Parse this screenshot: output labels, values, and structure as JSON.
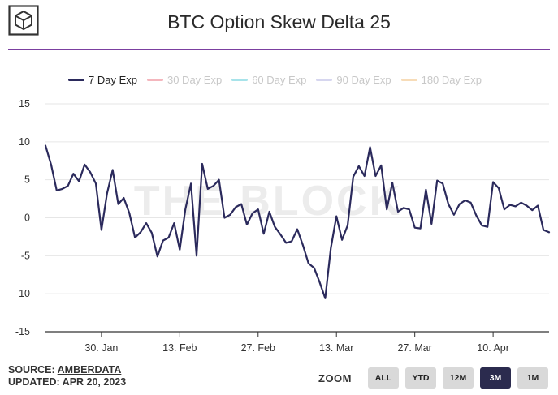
{
  "title": "BTC Option Skew Delta 25",
  "legend": [
    {
      "label": "7 Day Exp",
      "color": "#2b2a5c",
      "active": true
    },
    {
      "label": "30 Day Exp",
      "color": "#f4b6bd",
      "active": false
    },
    {
      "label": "60 Day Exp",
      "color": "#a7e3ea",
      "active": false
    },
    {
      "label": "90 Day Exp",
      "color": "#d6d6ef",
      "active": false
    },
    {
      "label": "180 Day Exp",
      "color": "#f7dcb8",
      "active": false
    }
  ],
  "watermark": "THE BLOCK",
  "source": {
    "prefix": "SOURCE: ",
    "name": "AMBERDATA",
    "updated": "UPDATED: APR 20, 2023"
  },
  "zoom": {
    "label": "ZOOM",
    "buttons": [
      "ALL",
      "YTD",
      "12M",
      "3M",
      "1M"
    ],
    "active": "3M"
  },
  "chart_data": {
    "type": "line",
    "title": "BTC Option Skew Delta 25",
    "ylim": [
      -15,
      15
    ],
    "yticks": [
      15,
      10,
      5,
      0,
      -5,
      -10,
      -15
    ],
    "xlim": [
      "2023-01-20",
      "2023-04-20"
    ],
    "xticks": [
      {
        "date": "2023-01-30",
        "label": "30. Jan"
      },
      {
        "date": "2023-02-13",
        "label": "13. Feb"
      },
      {
        "date": "2023-02-27",
        "label": "27. Feb"
      },
      {
        "date": "2023-03-13",
        "label": "13. Mar"
      },
      {
        "date": "2023-03-27",
        "label": "27. Mar"
      },
      {
        "date": "2023-04-10",
        "label": "10. Apr"
      }
    ],
    "grid": true,
    "legend_position": "top",
    "series": [
      {
        "name": "7 Day Exp",
        "color": "#2b2a5c",
        "points": [
          [
            "2023-01-20",
            9.5
          ],
          [
            "2023-01-21",
            7.0
          ],
          [
            "2023-01-22",
            3.6
          ],
          [
            "2023-01-23",
            3.8
          ],
          [
            "2023-01-24",
            4.2
          ],
          [
            "2023-01-25",
            5.8
          ],
          [
            "2023-01-26",
            4.8
          ],
          [
            "2023-01-27",
            7.0
          ],
          [
            "2023-01-28",
            6.0
          ],
          [
            "2023-01-29",
            4.5
          ],
          [
            "2023-01-30",
            -1.6
          ],
          [
            "2023-01-31",
            3.2
          ],
          [
            "2023-02-01",
            6.3
          ],
          [
            "2023-02-02",
            1.8
          ],
          [
            "2023-02-03",
            2.6
          ],
          [
            "2023-02-04",
            0.6
          ],
          [
            "2023-02-05",
            -2.6
          ],
          [
            "2023-02-06",
            -1.9
          ],
          [
            "2023-02-07",
            -0.7
          ],
          [
            "2023-02-08",
            -2.0
          ],
          [
            "2023-02-09",
            -5.1
          ],
          [
            "2023-02-10",
            -3.0
          ],
          [
            "2023-02-11",
            -2.6
          ],
          [
            "2023-02-12",
            -0.7
          ],
          [
            "2023-02-13",
            -4.2
          ],
          [
            "2023-02-14",
            1.1
          ],
          [
            "2023-02-15",
            4.5
          ],
          [
            "2023-02-16",
            -5.0
          ],
          [
            "2023-02-17",
            7.1
          ],
          [
            "2023-02-18",
            3.8
          ],
          [
            "2023-02-19",
            4.2
          ],
          [
            "2023-02-20",
            5.0
          ],
          [
            "2023-02-21",
            0.0
          ],
          [
            "2023-02-22",
            0.4
          ],
          [
            "2023-02-23",
            1.4
          ],
          [
            "2023-02-24",
            1.8
          ],
          [
            "2023-02-25",
            -0.9
          ],
          [
            "2023-02-26",
            0.6
          ],
          [
            "2023-02-27",
            1.1
          ],
          [
            "2023-02-28",
            -2.1
          ],
          [
            "2023-03-01",
            0.8
          ],
          [
            "2023-03-02",
            -1.2
          ],
          [
            "2023-03-03",
            -2.2
          ],
          [
            "2023-03-04",
            -3.3
          ],
          [
            "2023-03-05",
            -3.1
          ],
          [
            "2023-03-06",
            -1.5
          ],
          [
            "2023-03-07",
            -3.6
          ],
          [
            "2023-03-08",
            -6.0
          ],
          [
            "2023-03-09",
            -6.6
          ],
          [
            "2023-03-10",
            -8.5
          ],
          [
            "2023-03-11",
            -10.6
          ],
          [
            "2023-03-12",
            -4.0
          ],
          [
            "2023-03-13",
            0.2
          ],
          [
            "2023-03-14",
            -2.9
          ],
          [
            "2023-03-15",
            -1.0
          ],
          [
            "2023-03-16",
            5.4
          ],
          [
            "2023-03-17",
            6.8
          ],
          [
            "2023-03-18",
            5.5
          ],
          [
            "2023-03-19",
            9.3
          ],
          [
            "2023-03-20",
            5.5
          ],
          [
            "2023-03-21",
            6.9
          ],
          [
            "2023-03-22",
            1.1
          ],
          [
            "2023-03-23",
            4.6
          ],
          [
            "2023-03-24",
            0.8
          ],
          [
            "2023-03-25",
            1.3
          ],
          [
            "2023-03-26",
            1.1
          ],
          [
            "2023-03-27",
            -1.3
          ],
          [
            "2023-03-28",
            -1.4
          ],
          [
            "2023-03-29",
            3.7
          ],
          [
            "2023-03-30",
            -0.8
          ],
          [
            "2023-03-31",
            4.9
          ],
          [
            "2023-04-01",
            4.5
          ],
          [
            "2023-04-02",
            1.8
          ],
          [
            "2023-04-03",
            0.4
          ],
          [
            "2023-04-04",
            1.8
          ],
          [
            "2023-04-05",
            2.3
          ],
          [
            "2023-04-06",
            2.0
          ],
          [
            "2023-04-07",
            0.3
          ],
          [
            "2023-04-08",
            -1.0
          ],
          [
            "2023-04-09",
            -1.2
          ],
          [
            "2023-04-10",
            4.7
          ],
          [
            "2023-04-11",
            3.9
          ],
          [
            "2023-04-12",
            1.1
          ],
          [
            "2023-04-13",
            1.7
          ],
          [
            "2023-04-14",
            1.5
          ],
          [
            "2023-04-15",
            2.0
          ],
          [
            "2023-04-16",
            1.6
          ],
          [
            "2023-04-17",
            1.0
          ],
          [
            "2023-04-18",
            1.6
          ],
          [
            "2023-04-19",
            -1.6
          ],
          [
            "2023-04-20",
            -1.9
          ]
        ]
      }
    ]
  }
}
